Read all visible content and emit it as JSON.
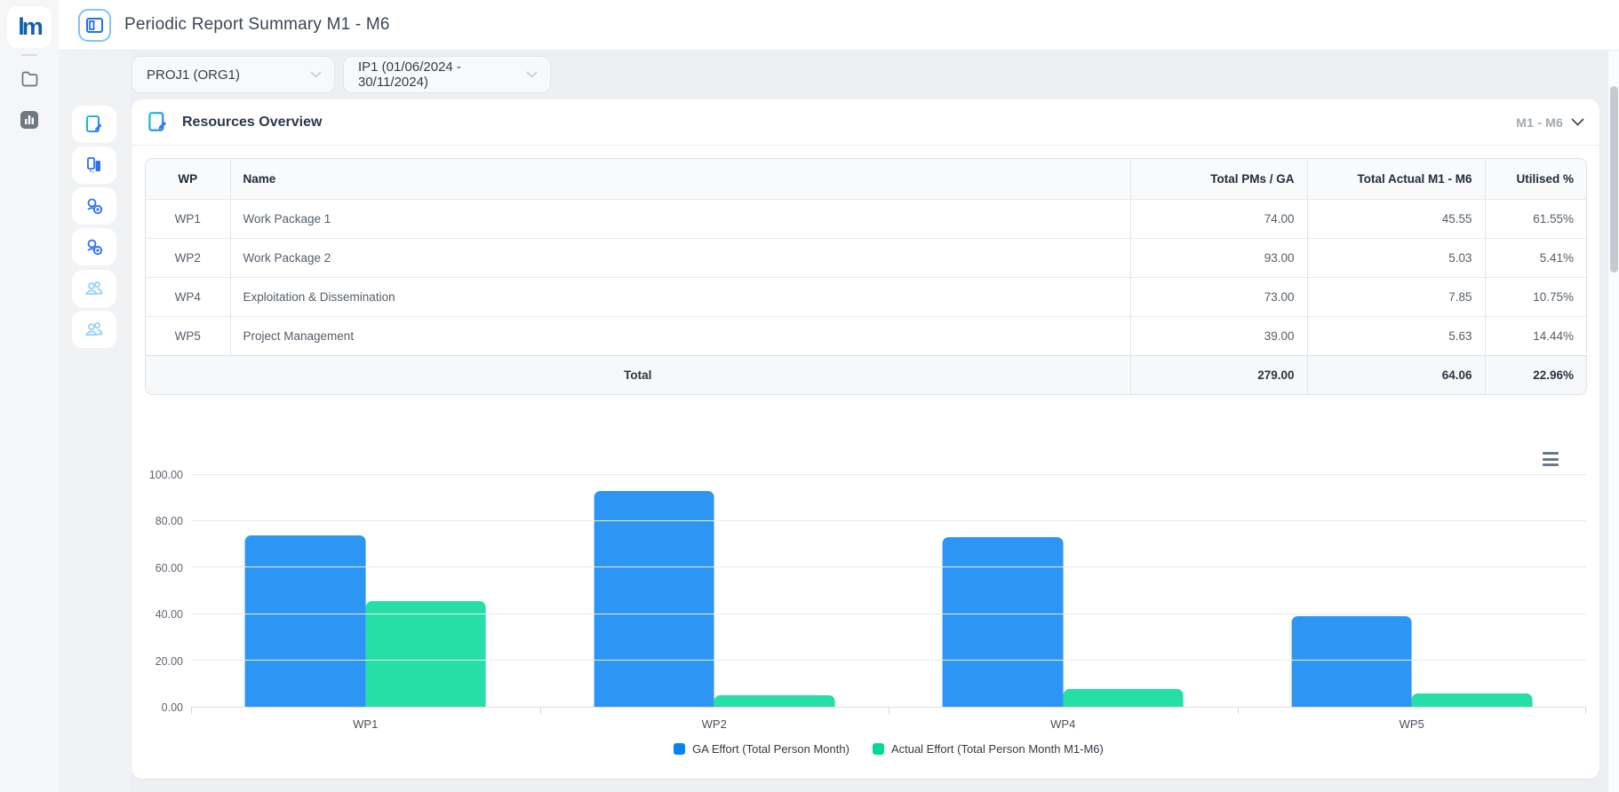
{
  "app": {
    "logo_text": "lm"
  },
  "header": {
    "title": "Periodic Report Summary M1 - M6",
    "toggle_icon": "sidebar-panel-icon"
  },
  "main_sidebar": {
    "icons": [
      "folder-icon",
      "bar-chart-icon"
    ]
  },
  "tool_sidebar": {
    "icons": [
      "report-edit-icon",
      "device-review-icon",
      "user-gear-icon",
      "user-gear-icon",
      "users-icon",
      "users-icon"
    ]
  },
  "filters": {
    "project": {
      "value": "PROJ1 (ORG1)",
      "icon": "chevron-down-icon"
    },
    "period": {
      "value": "IP1 (01/06/2024 - 30/11/2024)",
      "icon": "chevron-down-icon"
    }
  },
  "section": {
    "icon": "report-edit-icon",
    "title": "Resources Overview",
    "range_label": "M1 - M6",
    "range_icon": "chevron-down-icon"
  },
  "table": {
    "columns": [
      "WP",
      "Name",
      "Total PMs / GA",
      "Total Actual M1 - M6",
      "Utilised %"
    ],
    "rows": [
      {
        "wp": "WP1",
        "name": "Work Package 1",
        "total_pms": "74.00",
        "total_actual": "45.55",
        "utilised": "61.55%"
      },
      {
        "wp": "WP2",
        "name": "Work Package 2",
        "total_pms": "93.00",
        "total_actual": "5.03",
        "utilised": "5.41%"
      },
      {
        "wp": "WP4",
        "name": "Exploitation & Dissemination",
        "total_pms": "73.00",
        "total_actual": "7.85",
        "utilised": "10.75%"
      },
      {
        "wp": "WP5",
        "name": "Project Management",
        "total_pms": "39.00",
        "total_actual": "5.63",
        "utilised": "14.44%"
      }
    ],
    "total_row": {
      "label": "Total",
      "total_pms": "279.00",
      "total_actual": "64.06",
      "utilised": "22.96%"
    }
  },
  "chart_data": {
    "type": "bar",
    "title": "",
    "categories": [
      "WP1",
      "WP2",
      "WP4",
      "WP5"
    ],
    "series": [
      {
        "name": "GA Effort (Total Person Month)",
        "color": "#0884f2",
        "values": [
          74.0,
          93.0,
          73.0,
          39.0
        ]
      },
      {
        "name": "Actual Effort (Total Person Month M1-M6)",
        "color": "#00d998",
        "values": [
          45.55,
          5.03,
          7.85,
          5.63
        ]
      }
    ],
    "ylim": [
      0,
      100
    ],
    "yticks": [
      0,
      20,
      40,
      60,
      80,
      100
    ],
    "ytick_labels": [
      "0.00",
      "20.00",
      "40.00",
      "60.00",
      "80.00",
      "100.00"
    ],
    "xlabel": "",
    "ylabel": "",
    "grid": true,
    "legend_position": "bottom",
    "menu_icon": "hamburger-icon"
  },
  "colors": {
    "accent_blue": "#0884f2",
    "series_green": "#00d998",
    "toggle_border": "#82c4fa",
    "sidebar_bg": "#f0f2f4",
    "page_bg": "#edeff2",
    "muted_label": "#a2a9b2"
  }
}
